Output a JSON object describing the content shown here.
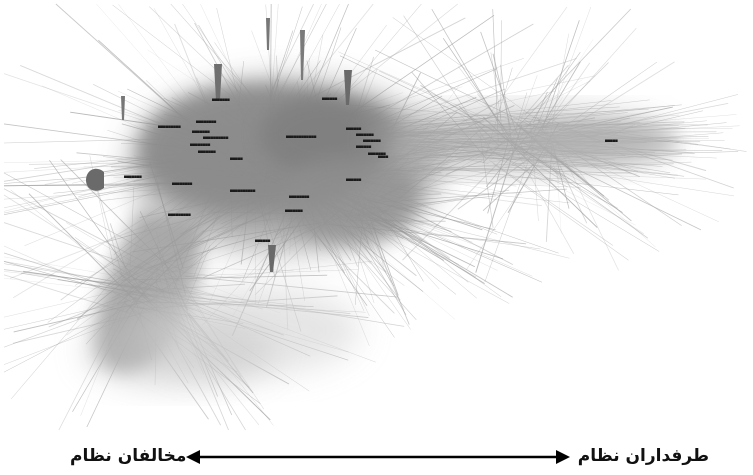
{
  "figure": {
    "type": "network-graph",
    "description_colors": {
      "background": "#ffffff",
      "cluster": "#8a8a8a",
      "edges": "#9a9a9a",
      "arrow": "#000000"
    }
  },
  "axis": {
    "left_label": "مخالفان نظام",
    "right_label": "طرفداران نظام",
    "direction": "bidirectional"
  },
  "nodes": [
    {
      "label": "■■■■■■■"
    },
    {
      "label": "■■■■■■■■"
    },
    {
      "label": "■■■■■■■■■"
    },
    {
      "label": "■■■■■■■"
    },
    {
      "label": "■■■■■■■■■■"
    },
    {
      "label": "■■■■■■■■"
    },
    {
      "label": "■■■■■■■"
    },
    {
      "label": "■■■■■"
    },
    {
      "label": "■■■■■■■■"
    },
    {
      "label": "■■■■■■■■■■"
    },
    {
      "label": "■■■■■■■■■"
    },
    {
      "label": "■■■■■■■"
    },
    {
      "label": "■■■■■■■■■■■■"
    },
    {
      "label": "■■■■■■"
    },
    {
      "label": "■■■■■■■"
    },
    {
      "label": "■■■■■■■"
    },
    {
      "label": "■■■■■■"
    },
    {
      "label": "■■■■■■■"
    },
    {
      "label": "■■■■"
    },
    {
      "label": "■■■■■■"
    },
    {
      "label": "■■■■■■■■"
    },
    {
      "label": "■■■■■■■"
    },
    {
      "label": "■■■■■■"
    },
    {
      "label": "■■■■■■"
    },
    {
      "label": "■■■■■"
    }
  ]
}
